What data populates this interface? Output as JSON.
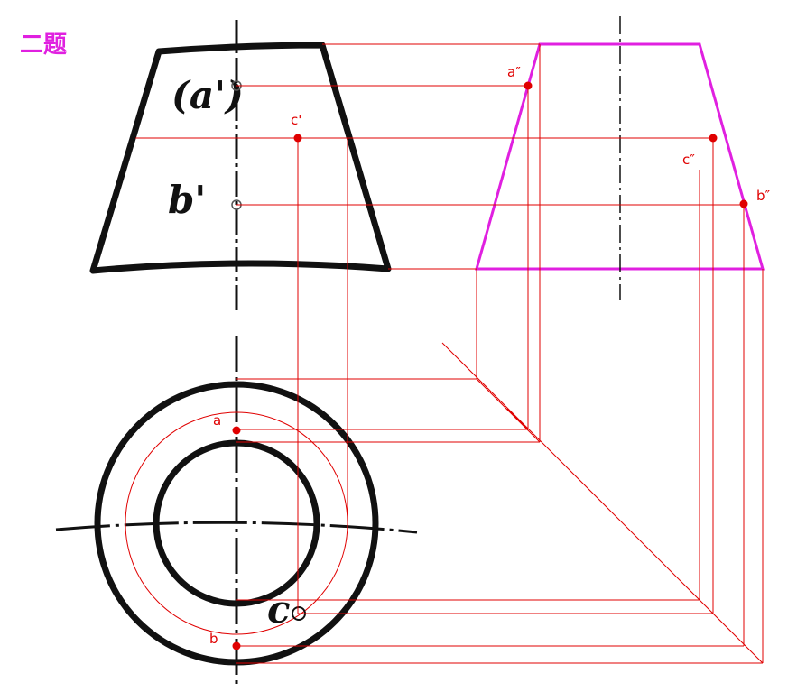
{
  "title": "二题",
  "colors": {
    "black": "#111111",
    "red": "#e00000",
    "magenta": "#e020e0"
  },
  "front_view": {
    "label_a_prime": "(a')",
    "label_b_prime": "b'",
    "label_c_prime": "c'"
  },
  "side_view": {
    "label_a_dprime": "a″",
    "label_b_dprime": "b″",
    "label_c_dprime": "c″"
  },
  "top_view": {
    "label_a": "a",
    "label_b": "b",
    "label_c": "c"
  }
}
